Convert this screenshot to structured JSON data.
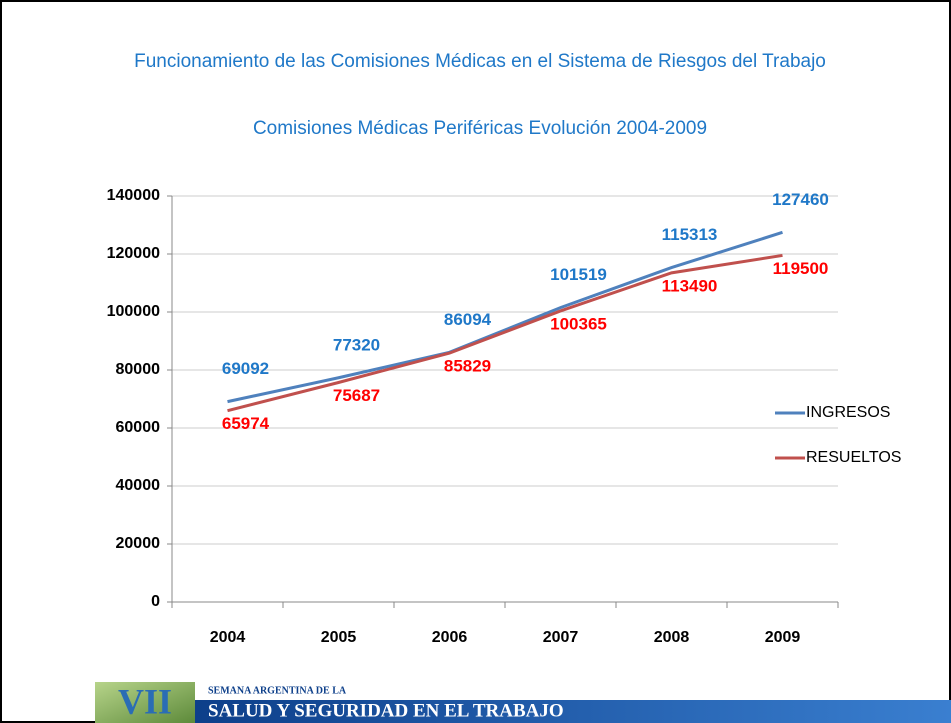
{
  "chart_data": {
    "type": "line",
    "title": "Funcionamiento de las Comisiones Médicas en el Sistema de Riesgos del Trabajo",
    "subtitle": "Comisiones Médicas Periféricas Evolución 2004-2009",
    "categories": [
      "2004",
      "2005",
      "2006",
      "2007",
      "2008",
      "2009"
    ],
    "series": [
      {
        "name": "INGRESOS",
        "color": "#4f81bd",
        "label_color": "#1f78c8",
        "values": [
          69092,
          77320,
          86094,
          101519,
          115313,
          127460
        ]
      },
      {
        "name": "RESUELTOS",
        "color": "#c0504d",
        "label_color": "#ff0000",
        "values": [
          65974,
          75687,
          85829,
          100365,
          113490,
          119500
        ]
      }
    ],
    "ylim": [
      0,
      140000
    ],
    "yticks": [
      0,
      20000,
      40000,
      60000,
      80000,
      100000,
      120000,
      140000
    ],
    "grid": true,
    "legend": "right"
  },
  "footer": {
    "logo": "VII",
    "kicker": "SEMANA ARGENTINA DE LA",
    "banner": "SALUD Y SEGURIDAD EN EL TRABAJO"
  }
}
